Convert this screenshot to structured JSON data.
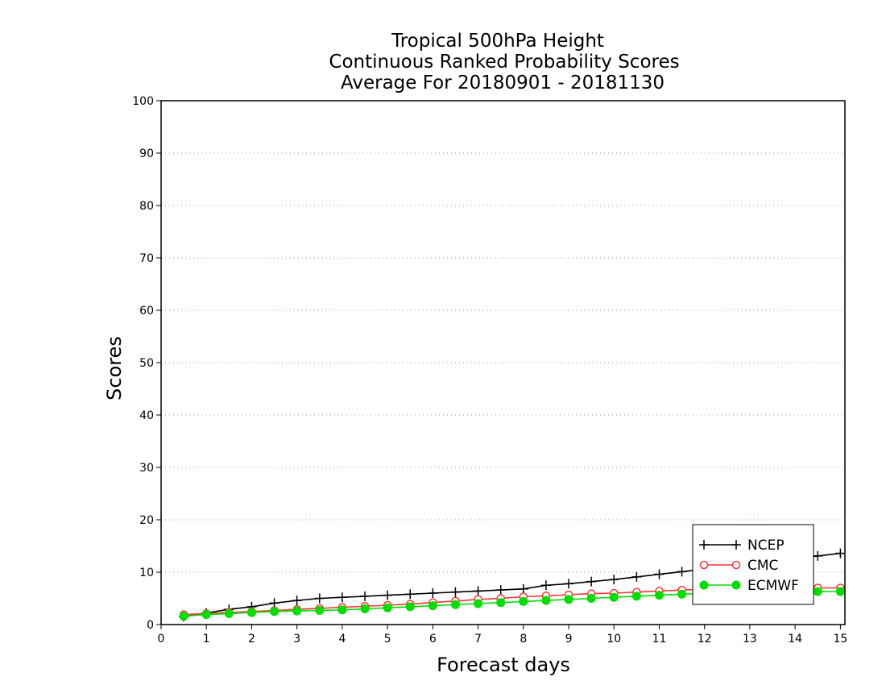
{
  "chart_data": {
    "type": "line",
    "title": [
      "Tropical 500hPa Height",
      "Continuous Ranked Probability Scores",
      "Average For 20180901 - 20181130"
    ],
    "xlabel": "Forecast days",
    "ylabel": "Scores",
    "xlim": [
      0,
      15.1
    ],
    "ylim": [
      0,
      100
    ],
    "xticks": [
      "0",
      "1",
      "2",
      "3",
      "4",
      "5",
      "6",
      "7",
      "8",
      "9",
      "10",
      "11",
      "12",
      "13",
      "14",
      "15"
    ],
    "yticks": [
      "0",
      "10",
      "20",
      "30",
      "40",
      "50",
      "60",
      "70",
      "80",
      "90",
      "100"
    ],
    "grid": "horizontal dotted",
    "legend_position": "bottom-right",
    "x": [
      0.5,
      1,
      1.5,
      2,
      2.5,
      3,
      3.5,
      4,
      4.5,
      5,
      5.5,
      6,
      6.5,
      7,
      7.5,
      8,
      8.5,
      9,
      9.5,
      10,
      10.5,
      11,
      11.5,
      12,
      12.5,
      13,
      13.5,
      14,
      14.5,
      15
    ],
    "series": [
      {
        "name": "NCEP",
        "color": "#000000",
        "marker": "plus",
        "values": [
          1.5,
          2.2,
          2.9,
          3.4,
          4.1,
          4.6,
          5.0,
          5.2,
          5.4,
          5.6,
          5.8,
          6.0,
          6.2,
          6.4,
          6.6,
          6.8,
          7.5,
          7.8,
          8.2,
          8.6,
          9.1,
          9.6,
          10.1,
          10.6,
          11.1,
          11.6,
          12.1,
          12.6,
          13.1,
          13.6
        ]
      },
      {
        "name": "CMC",
        "color": "#ff3333",
        "marker": "open-circle",
        "values": [
          1.9,
          2.1,
          2.3,
          2.5,
          2.7,
          2.9,
          3.1,
          3.3,
          3.5,
          3.7,
          3.9,
          4.2,
          4.5,
          4.8,
          5.0,
          5.3,
          5.5,
          5.7,
          5.9,
          6.0,
          6.2,
          6.4,
          6.6,
          6.7,
          6.8,
          6.9,
          7.0,
          6.9,
          7.0,
          7.0
        ]
      },
      {
        "name": "ECMWF",
        "color": "#00dd00",
        "marker": "filled-circle",
        "values": [
          1.6,
          1.9,
          2.1,
          2.3,
          2.5,
          2.6,
          2.7,
          2.8,
          3.0,
          3.2,
          3.4,
          3.6,
          3.8,
          4.0,
          4.2,
          4.4,
          4.6,
          4.8,
          5.0,
          5.2,
          5.4,
          5.6,
          5.8,
          5.9,
          6.0,
          6.1,
          6.2,
          6.2,
          6.3,
          6.3
        ]
      }
    ]
  }
}
